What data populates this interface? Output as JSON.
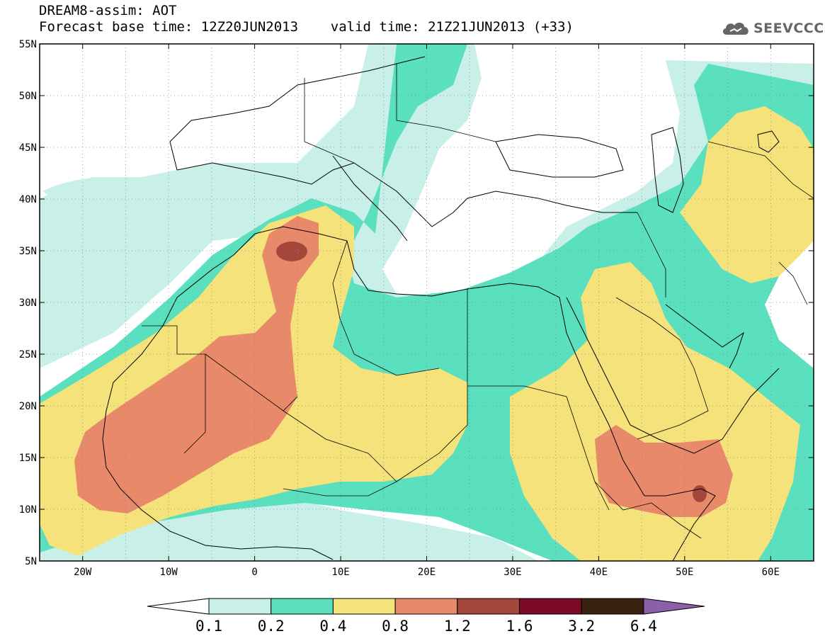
{
  "header": {
    "title_line1": "DREAM8-assim: AOT",
    "title_line2": "Forecast base time: 12Z20JUN2013    valid time: 21Z21JUN2013 (+33)",
    "logo_text": "SEEVCCC"
  },
  "map": {
    "lon_range": [
      -25,
      65
    ],
    "lat_range": [
      5,
      55
    ],
    "lat_labels": [
      "55N",
      "50N",
      "45N",
      "40N",
      "35N",
      "30N",
      "25N",
      "20N",
      "15N",
      "10N",
      "5N"
    ],
    "lon_labels": [
      "20W",
      "10W",
      "0",
      "10E",
      "20E",
      "30E",
      "40E",
      "50E",
      "60E"
    ]
  },
  "colorbar": {
    "labels": [
      "0.1",
      "0.2",
      "0.4",
      "0.8",
      "1.2",
      "1.6",
      "3.2",
      "6.4"
    ],
    "colors": [
      "#ffffff",
      "#c8f0e8",
      "#5ae0be",
      "#f5e27a",
      "#e8896a",
      "#a4463a",
      "#7a0a25",
      "#3a2010",
      "#8a60a8"
    ]
  }
}
